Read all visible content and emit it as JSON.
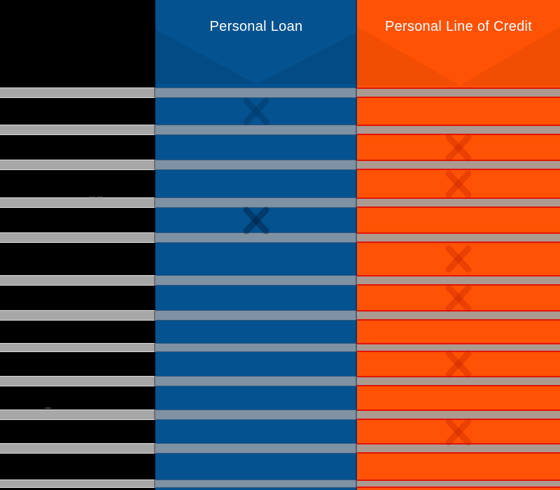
{
  "header": {
    "col1_label": "",
    "col2_label": "Personal Loan",
    "col3_label": "Personal Line of Credit"
  },
  "colors": {
    "column_black": "#000000",
    "column_blue": "#04528F",
    "column_orange": "#FF5204",
    "divider_gray": "#A7A7A7",
    "divider_blue_gray": "#7E92A4",
    "divider_warm_gray": "#AC9A91",
    "divider_red_line": "#E31400",
    "header_text": "#FFFFFF"
  },
  "rows": [
    {
      "index": 1,
      "loan_mark": "x-faint",
      "credit_mark": "none"
    },
    {
      "index": 2,
      "loan_mark": "none",
      "credit_mark": "x"
    },
    {
      "index": 3,
      "loan_mark": "none",
      "credit_mark": "x"
    },
    {
      "index": 4,
      "loan_mark": "x",
      "credit_mark": "none"
    },
    {
      "index": 5,
      "loan_mark": "none",
      "credit_mark": "x"
    },
    {
      "index": 6,
      "loan_mark": "none",
      "credit_mark": "x"
    },
    {
      "index": 7,
      "loan_mark": "none",
      "credit_mark": "none"
    },
    {
      "index": 8,
      "loan_mark": "none",
      "credit_mark": "x"
    },
    {
      "index": 9,
      "loan_mark": "none",
      "credit_mark": "none"
    },
    {
      "index": 10,
      "loan_mark": "none",
      "credit_mark": "x"
    },
    {
      "index": 11,
      "loan_mark": "none",
      "credit_mark": "none"
    }
  ]
}
